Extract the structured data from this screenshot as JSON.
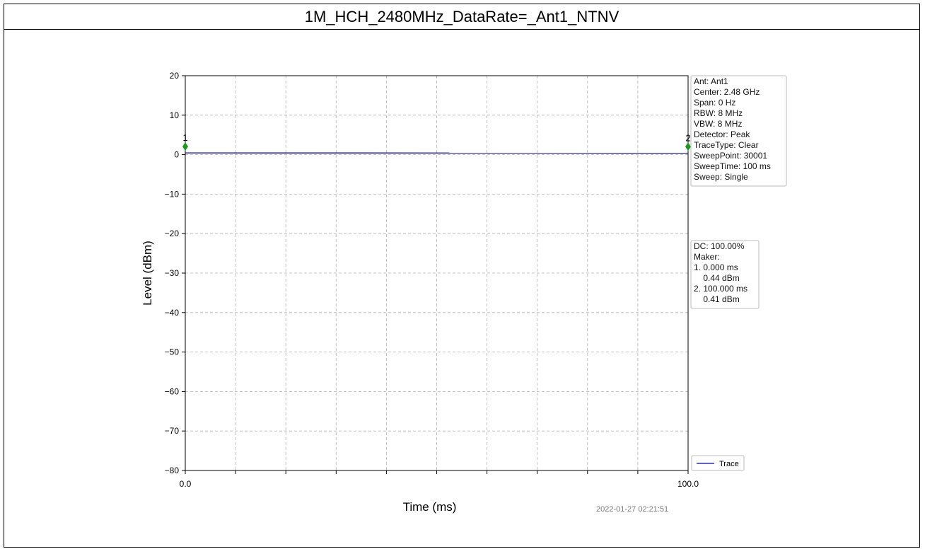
{
  "title": "1M_HCH_2480MHz_DataRate=_Ant1_NTNV",
  "timestamp": "2022-01-27 02:21:51",
  "chart_data": {
    "type": "line",
    "xlabel": "Time (ms)",
    "ylabel": "Level (dBm)",
    "xlim": [
      0,
      100
    ],
    "ylim": [
      -80,
      20
    ],
    "x_tick_labels": [
      "0.0",
      "100.0"
    ],
    "y_ticks": [
      20,
      10,
      0,
      -10,
      -20,
      -30,
      -40,
      -50,
      -60,
      -70,
      -80
    ],
    "y_tick_labels": [
      "20",
      "10",
      "0",
      "−10",
      "−20",
      "−30",
      "−40",
      "−50",
      "−60",
      "−70",
      "−80"
    ],
    "grid": true,
    "series": [
      {
        "name": "Trace",
        "color": "#0000cc",
        "x": [
          0,
          100
        ],
        "y": [
          0.44,
          0.41
        ]
      }
    ],
    "markers": [
      {
        "label": "1",
        "x": 0,
        "y": 0.44,
        "color": "#1a9a1a"
      },
      {
        "label": "2",
        "x": 100,
        "y": 0.41,
        "color": "#1a9a1a"
      }
    ],
    "settings_box": [
      "Ant: Ant1",
      "Center: 2.48 GHz",
      "Span: 0 Hz",
      "RBW: 8 MHz",
      "VBW: 8 MHz",
      "Detector: Peak",
      "TraceType: Clear",
      "SweepPoint: 30001",
      "SweepTime: 100 ms",
      "Sweep: Single"
    ],
    "marker_box": [
      "DC: 100.00%",
      "Maker:",
      "1. 0.000 ms",
      "    0.44 dBm",
      "2. 100.000 ms",
      "    0.41 dBm"
    ],
    "legend": {
      "entries": [
        "Trace"
      ],
      "placement": "lower-right"
    }
  }
}
